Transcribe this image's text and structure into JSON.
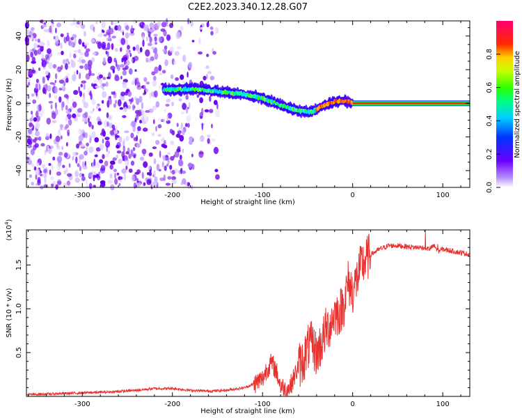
{
  "title": "C2E2.2023.340.12.28.G07",
  "colors": {
    "background": "#ffffff",
    "snr_line": "#e8312f",
    "spectrogram_noise": "#8a2be2",
    "axis": "#000000"
  },
  "chart_data": [
    {
      "type": "heatmap",
      "title": "C2E2.2023.340.12.28.G07",
      "xlabel": "Height of straight line (km)",
      "ylabel": "Frequency (Hz)",
      "xlim": [
        -362,
        130
      ],
      "ylim": [
        -50,
        49
      ],
      "x_ticks": [
        -300,
        -200,
        -100,
        0,
        100
      ],
      "x_tick_labels": [
        "-300",
        "-200",
        "-100",
        "0",
        "100"
      ],
      "y_ticks": [
        -40,
        -20,
        0,
        20,
        40
      ],
      "y_tick_labels": [
        "-40",
        "-20",
        "0",
        "20",
        "40"
      ],
      "colorbar": {
        "label": "Normalized spectral amplitude",
        "range": [
          0,
          1
        ],
        "ticks": [
          0.0,
          0.2,
          0.4,
          0.6,
          0.8
        ],
        "tick_labels": [
          "0.0",
          "0.2",
          "0.4",
          "0.6",
          "0.8"
        ],
        "colormap": "rainbow (purple-blue-cyan-green-yellow-red-magenta)"
      },
      "signal_track": {
        "x": [
          -210,
          -175,
          -150,
          -120,
          -100,
          -80,
          -60,
          -45,
          -35,
          -25,
          -15,
          -5,
          0,
          130
        ],
        "frequency": [
          8,
          8.5,
          7,
          5.5,
          3,
          -1,
          -4.5,
          -5,
          -2,
          0,
          1.5,
          1,
          0,
          0
        ]
      },
      "noise_region_x": [
        -362,
        -150
      ]
    },
    {
      "type": "line",
      "title": "",
      "xlabel": "Height of straight line (km)",
      "ylabel": "SNR (10 * v/v)",
      "y_multiplier_label": "(x10^4)",
      "xlim": [
        -362,
        130
      ],
      "ylim": [
        0,
        1.9
      ],
      "x_ticks": [
        -300,
        -200,
        -100,
        0,
        100
      ],
      "x_tick_labels": [
        "-300",
        "-200",
        "-100",
        "0",
        "100"
      ],
      "y_ticks": [
        0.5,
        1.0,
        1.5
      ],
      "y_tick_labels": [
        "0.5",
        "1.0",
        "1.5"
      ],
      "series": [
        {
          "x": [
            -362,
            -330,
            -300,
            -270,
            -240,
            -220,
            -200,
            -180,
            -160,
            -140,
            -120,
            -110,
            -100,
            -95,
            -90,
            -85,
            -80,
            -75,
            -70,
            -65,
            -60,
            -55,
            -50,
            -45,
            -40,
            -35,
            -30,
            -25,
            -20,
            -15,
            -10,
            -5,
            0,
            5,
            10,
            20,
            30,
            40,
            50,
            60,
            70,
            80,
            85,
            90,
            95,
            100,
            110,
            120,
            130
          ],
          "y": [
            0.02,
            0.03,
            0.04,
            0.05,
            0.07,
            0.09,
            0.09,
            0.07,
            0.06,
            0.07,
            0.1,
            0.14,
            0.2,
            0.32,
            0.38,
            0.3,
            0.12,
            0.08,
            0.1,
            0.22,
            0.35,
            0.4,
            0.55,
            0.6,
            0.48,
            0.6,
            0.75,
            0.82,
            0.95,
            0.95,
            1.05,
            1.3,
            1.2,
            1.35,
            1.5,
            1.62,
            1.68,
            1.72,
            1.72,
            1.71,
            1.7,
            1.7,
            1.68,
            1.72,
            1.66,
            1.68,
            1.66,
            1.64,
            1.62
          ]
        }
      ]
    }
  ]
}
